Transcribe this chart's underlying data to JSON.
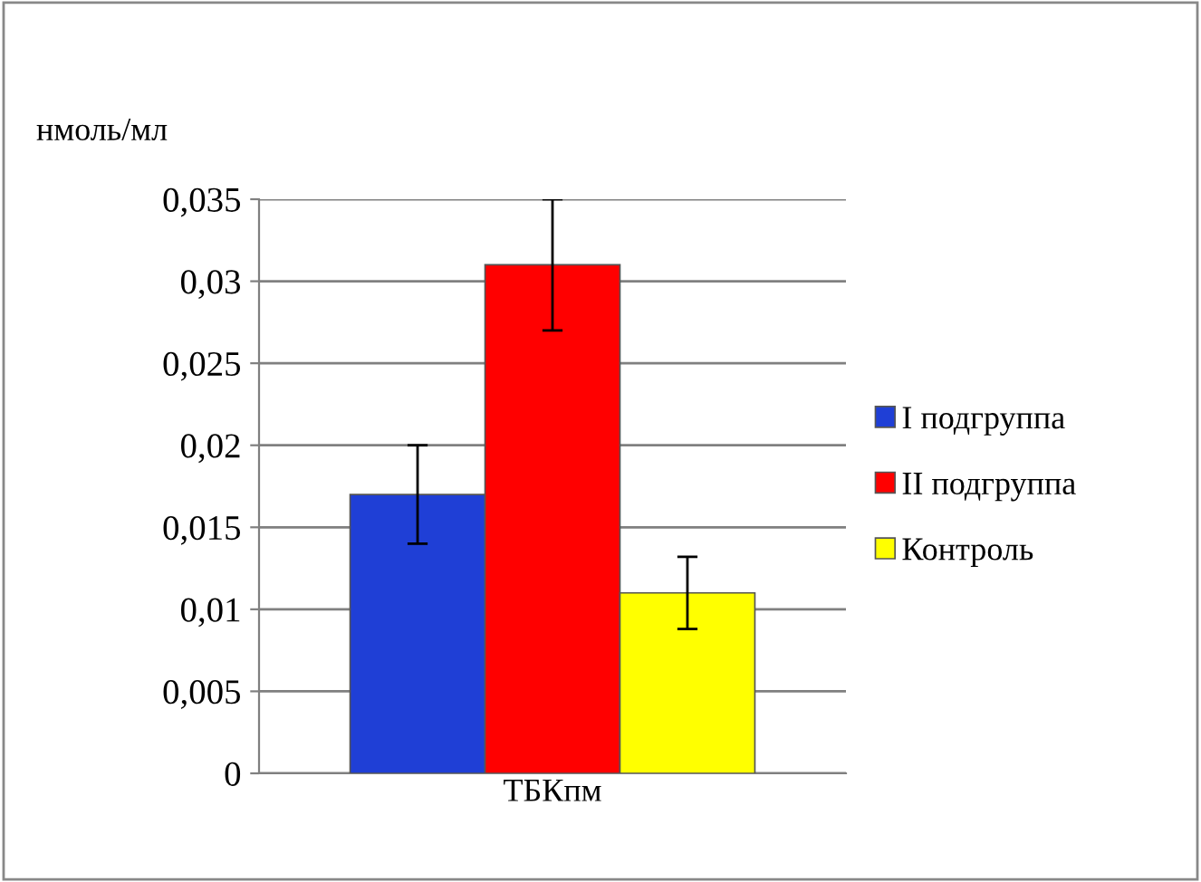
{
  "chart_data": {
    "type": "bar",
    "ylabel": "нмоль/мл",
    "xlabel": "ТБКпм",
    "categories": [
      null,
      null,
      null
    ],
    "series": [
      {
        "name": "I подгруппа",
        "color": "#1f3fd6",
        "values": [
          0.017,
          null,
          null
        ],
        "errors": [
          0.003,
          null,
          null
        ]
      },
      {
        "name": "II подгруппа",
        "color": "#ff0000",
        "values": [
          null,
          0.031,
          null
        ],
        "errors": [
          null,
          0.004,
          null
        ]
      },
      {
        "name": "Контроль",
        "color": "#ffff00",
        "values": [
          null,
          null,
          0.011
        ],
        "errors": [
          null,
          null,
          0.0022
        ]
      }
    ],
    "ylim": [
      0,
      0.035
    ],
    "yticks": [
      0,
      {
        "value": 0.005,
        "label": "0,005"
      },
      {
        "value": 0.01,
        "label": "0,01"
      },
      {
        "value": 0.015,
        "label": "0,015"
      },
      {
        "value": 0.02,
        "label": "0,02"
      },
      {
        "value": 0.025,
        "label": "0,025"
      },
      {
        "value": 0.03,
        "label": "0,03"
      },
      {
        "value": 0.035,
        "label": "0,035"
      }
    ],
    "grid": "y",
    "legend": "right"
  }
}
